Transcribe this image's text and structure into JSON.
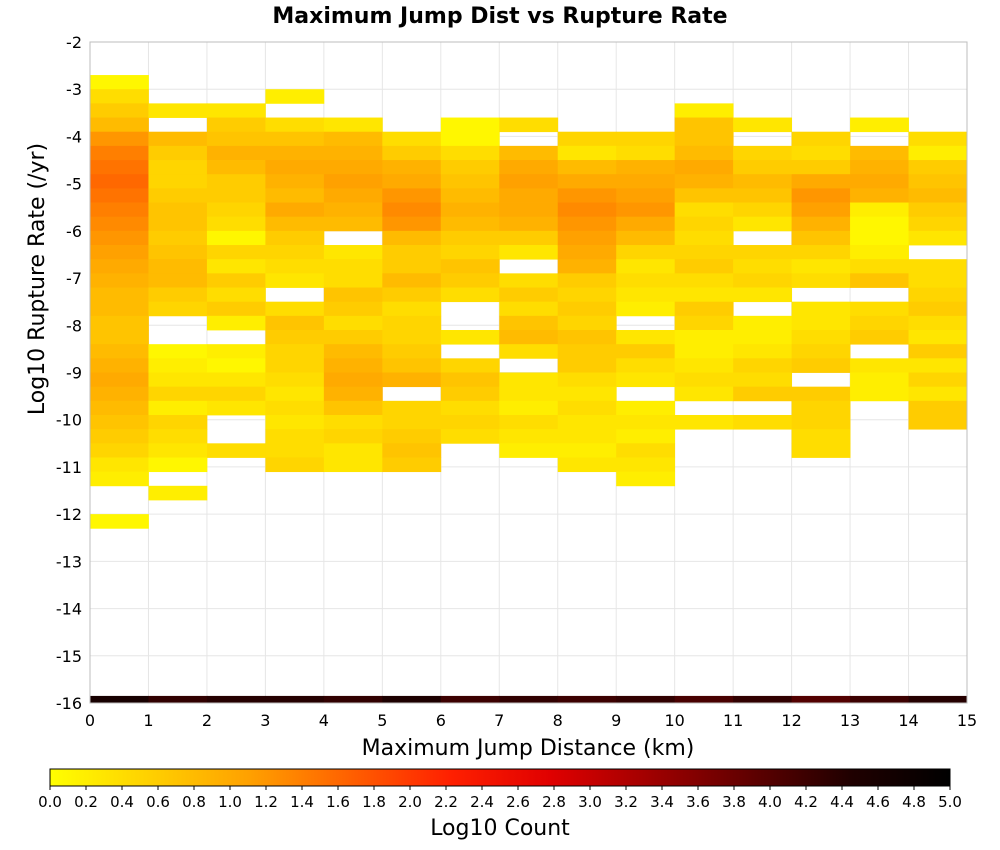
{
  "chart_data": {
    "type": "heatmap",
    "title": "Maximum Jump Dist vs Rupture Rate",
    "xlabel": "Maximum Jump Distance (km)",
    "ylabel": "Log10 Rupture Rate (/yr)",
    "xlim": [
      0,
      15
    ],
    "ylim": [
      -16,
      -2
    ],
    "x_ticks": [
      "0",
      "1",
      "2",
      "3",
      "4",
      "5",
      "6",
      "7",
      "8",
      "9",
      "10",
      "11",
      "12",
      "13",
      "14",
      "15"
    ],
    "y_ticks": [
      "-2",
      "-3",
      "-4",
      "-5",
      "-6",
      "-7",
      "-8",
      "-9",
      "-10",
      "-11",
      "-12",
      "-13",
      "-14",
      "-15",
      "-16"
    ],
    "x_bin_width": 1,
    "y_bin_width": 0.3,
    "grid": true,
    "colorbar": {
      "label": "Log10 Count",
      "range": [
        0,
        5
      ],
      "ticks": [
        "0.0",
        "0.2",
        "0.4",
        "0.6",
        "0.8",
        "1.0",
        "1.2",
        "1.4",
        "1.6",
        "1.8",
        "2.0",
        "2.2",
        "2.4",
        "2.6",
        "2.8",
        "3.0",
        "3.2",
        "3.4",
        "3.6",
        "3.8",
        "4.0",
        "4.2",
        "4.4",
        "4.6",
        "4.8",
        "5.0"
      ],
      "colors": [
        "#ffff00",
        "#ffd000",
        "#ffa000",
        "#ff6000",
        "#ff2000",
        "#e00000",
        "#a00000",
        "#600000",
        "#200000",
        "#000000"
      ]
    },
    "columns": [
      {
        "x": 0,
        "y_top": -2.7,
        "values": [
          0.1,
          0.4,
          0.6,
          0.8,
          1.2,
          1.4,
          1.5,
          1.6,
          1.5,
          1.4,
          1.3,
          1.2,
          1.1,
          1.0,
          0.9,
          0.8,
          0.8,
          0.7,
          0.7,
          0.8,
          0.9,
          1.0,
          0.9,
          0.8,
          0.7,
          0.6,
          0.5,
          0.3,
          0.2,
          null,
          null,
          0.1
        ]
      },
      {
        "x": 1,
        "y_top": -3.3,
        "values": [
          0.3,
          null,
          0.8,
          0.6,
          0.5,
          0.5,
          0.6,
          0.7,
          0.7,
          0.6,
          0.7,
          0.8,
          0.8,
          0.6,
          0.5,
          null,
          null,
          0.1,
          0.2,
          0.3,
          0.5,
          0.2,
          0.5,
          0.4,
          0.3,
          0.1,
          null,
          0.2
        ]
      },
      {
        "x": 2,
        "y_top": -3.3,
        "values": [
          0.3,
          0.6,
          0.7,
          0.9,
          0.8,
          0.6,
          0.6,
          0.5,
          0.4,
          0.1,
          0.5,
          0.3,
          0.6,
          0.4,
          0.6,
          0.2,
          null,
          0.2,
          0.1,
          0.3,
          0.5,
          0.3,
          null,
          null,
          0.4
        ]
      },
      {
        "x": 3,
        "y_top": -3.0,
        "values": [
          0.2,
          null,
          0.4,
          0.7,
          0.9,
          1.0,
          0.9,
          0.8,
          1.0,
          0.8,
          0.6,
          0.5,
          0.4,
          0.3,
          null,
          0.4,
          0.7,
          0.6,
          0.5,
          0.5,
          0.4,
          0.3,
          0.4,
          0.3,
          0.4,
          0.4,
          0.5
        ]
      },
      {
        "x": 4,
        "y_top": -3.6,
        "values": [
          0.3,
          0.8,
          0.9,
          1.0,
          1.1,
          1.0,
          0.9,
          0.8,
          null,
          0.3,
          0.4,
          0.4,
          0.7,
          0.6,
          0.4,
          0.6,
          0.8,
          0.9,
          1.0,
          0.9,
          0.7,
          0.4,
          0.5,
          0.3,
          0.3
        ]
      },
      {
        "x": 5,
        "y_top": -3.9,
        "values": [
          0.4,
          0.6,
          0.9,
          1.0,
          1.2,
          1.3,
          1.2,
          0.8,
          0.6,
          0.6,
          0.8,
          0.6,
          0.4,
          0.5,
          0.5,
          0.6,
          0.7,
          0.9,
          null,
          0.5,
          0.5,
          0.6,
          0.7,
          0.6
        ]
      },
      {
        "x": 6,
        "y_top": -3.6,
        "values": [
          0.1,
          0.1,
          0.4,
          0.6,
          0.7,
          0.8,
          0.9,
          0.8,
          0.6,
          0.5,
          0.7,
          0.6,
          0.4,
          null,
          null,
          0.3,
          null,
          0.5,
          0.7,
          0.6,
          0.4,
          0.5,
          0.4
        ]
      },
      {
        "x": 7,
        "y_top": -3.6,
        "values": [
          0.4,
          null,
          0.8,
          1.0,
          1.1,
          1.0,
          1.0,
          0.9,
          0.6,
          0.3,
          null,
          0.4,
          0.6,
          0.4,
          0.7,
          0.8,
          0.4,
          null,
          0.3,
          0.3,
          0.2,
          0.4,
          0.3,
          0.2
        ]
      },
      {
        "x": 8,
        "y_top": -3.9,
        "values": [
          0.5,
          0.3,
          0.8,
          1.0,
          1.2,
          1.3,
          1.2,
          1.1,
          1.0,
          0.9,
          0.6,
          0.5,
          0.6,
          0.5,
          0.7,
          0.6,
          0.6,
          0.4,
          0.3,
          0.4,
          0.3,
          0.3,
          0.2,
          0.3
        ]
      },
      {
        "x": 9,
        "y_top": -3.9,
        "values": [
          0.5,
          0.4,
          0.9,
          1.0,
          1.1,
          1.2,
          1.0,
          0.8,
          0.5,
          0.3,
          0.4,
          0.3,
          0.2,
          null,
          0.3,
          0.6,
          0.4,
          0.3,
          null,
          0.2,
          0.3,
          0.2,
          0.4,
          0.3,
          0.2
        ]
      },
      {
        "x": 10,
        "y_top": -3.3,
        "values": [
          0.2,
          0.7,
          0.7,
          0.8,
          1.0,
          0.9,
          0.7,
          0.4,
          0.5,
          0.4,
          0.5,
          0.6,
          0.4,
          0.3,
          0.6,
          0.5,
          0.2,
          0.2,
          0.3,
          0.4,
          0.3,
          null,
          0.3
        ]
      },
      {
        "x": 11,
        "y_top": -3.6,
        "values": [
          0.3,
          null,
          0.5,
          0.6,
          0.8,
          0.7,
          0.5,
          0.3,
          null,
          0.5,
          0.4,
          0.5,
          0.3,
          null,
          0.2,
          0.2,
          0.3,
          0.5,
          0.4,
          0.6,
          null,
          0.4
        ]
      },
      {
        "x": 12,
        "y_top": -3.9,
        "values": [
          0.5,
          0.4,
          0.6,
          1.0,
          1.2,
          1.1,
          0.9,
          0.7,
          0.5,
          0.3,
          0.4,
          null,
          0.3,
          0.3,
          0.4,
          0.5,
          0.6,
          null,
          0.6,
          0.5,
          0.5,
          0.4,
          0.4
        ]
      },
      {
        "x": 13,
        "y_top": -3.6,
        "values": [
          0.2,
          null,
          0.8,
          0.9,
          1.0,
          0.9,
          0.2,
          0.1,
          0.1,
          0.2,
          0.4,
          0.7,
          null,
          0.4,
          0.5,
          0.6,
          null,
          0.3,
          0.2,
          0.2
        ]
      },
      {
        "x": 14,
        "y_top": -3.9,
        "values": [
          0.4,
          0.2,
          0.6,
          0.7,
          0.8,
          0.6,
          0.5,
          0.3,
          null,
          0.4,
          0.4,
          0.5,
          0.6,
          0.4,
          0.3,
          0.6,
          0.3,
          0.5,
          0.3,
          0.6,
          0.6
        ]
      }
    ],
    "bottom_row": {
      "y_low": -16,
      "y_high": -15.85,
      "values": [
        4.6,
        4.3,
        4.4,
        4.4,
        4.3,
        4.5,
        4.2,
        4.3,
        4.2,
        4.3,
        4.1,
        4.3,
        4.0,
        4.2,
        4.4
      ]
    }
  }
}
